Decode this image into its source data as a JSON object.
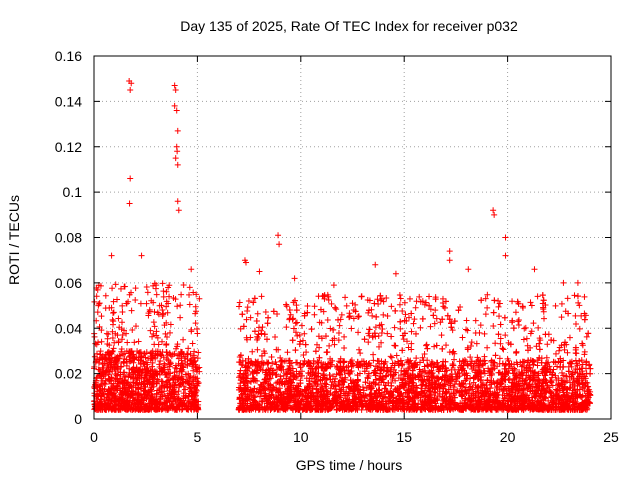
{
  "chart_data": {
    "type": "scatter",
    "title": "Day 135 of 2025, Rate Of TEC Index for receiver p032",
    "xlabel": "GPS time / hours",
    "ylabel": "ROTI / TECUs",
    "xlim": [
      0,
      25
    ],
    "ylim": [
      0,
      0.16
    ],
    "xticks": [
      0,
      5,
      10,
      15,
      20,
      25
    ],
    "yticks": [
      0,
      0.02,
      0.04,
      0.06,
      0.08,
      0.1,
      0.12,
      0.14,
      0.16
    ],
    "xtick_labels": [
      "0",
      "5",
      "10",
      "15",
      "20",
      "25"
    ],
    "ytick_labels": [
      "0",
      "0.02",
      "0.04",
      "0.06",
      "0.08",
      "0.1",
      "0.12",
      "0.14",
      "0.16"
    ],
    "grid": true,
    "marker": "+",
    "marker_color": "#ff0000",
    "data_gap_hours": [
      5.1,
      7.0
    ],
    "series": [
      {
        "name": "ROTI",
        "highlighted_points": [
          {
            "x": 1.7,
            "y": 0.149
          },
          {
            "x": 1.8,
            "y": 0.148
          },
          {
            "x": 1.75,
            "y": 0.145
          },
          {
            "x": 1.75,
            "y": 0.106
          },
          {
            "x": 1.72,
            "y": 0.095
          },
          {
            "x": 3.9,
            "y": 0.147
          },
          {
            "x": 3.95,
            "y": 0.145
          },
          {
            "x": 3.9,
            "y": 0.138
          },
          {
            "x": 4.0,
            "y": 0.136
          },
          {
            "x": 4.05,
            "y": 0.127
          },
          {
            "x": 4.0,
            "y": 0.12
          },
          {
            "x": 4.02,
            "y": 0.118
          },
          {
            "x": 3.95,
            "y": 0.115
          },
          {
            "x": 4.05,
            "y": 0.112
          },
          {
            "x": 4.05,
            "y": 0.096
          },
          {
            "x": 4.1,
            "y": 0.092
          },
          {
            "x": 8.9,
            "y": 0.081
          },
          {
            "x": 8.95,
            "y": 0.077
          },
          {
            "x": 19.3,
            "y": 0.092
          },
          {
            "x": 19.35,
            "y": 0.09
          },
          {
            "x": 19.9,
            "y": 0.08
          },
          {
            "x": 19.9,
            "y": 0.072
          },
          {
            "x": 17.2,
            "y": 0.074
          },
          {
            "x": 17.2,
            "y": 0.07
          },
          {
            "x": 7.3,
            "y": 0.07
          },
          {
            "x": 7.35,
            "y": 0.069
          },
          {
            "x": 8.0,
            "y": 0.065
          },
          {
            "x": 9.7,
            "y": 0.062
          },
          {
            "x": 11.6,
            "y": 0.059
          },
          {
            "x": 13.6,
            "y": 0.068
          },
          {
            "x": 14.6,
            "y": 0.064
          },
          {
            "x": 18.1,
            "y": 0.066
          },
          {
            "x": 21.3,
            "y": 0.066
          },
          {
            "x": 22.7,
            "y": 0.06
          },
          {
            "x": 23.4,
            "y": 0.06
          },
          {
            "x": 2.3,
            "y": 0.072
          },
          {
            "x": 0.85,
            "y": 0.072
          },
          {
            "x": 4.7,
            "y": 0.066
          },
          {
            "x": 12.5,
            "y": 0.051
          },
          {
            "x": 16.5,
            "y": 0.048
          }
        ],
        "dense_segments": [
          {
            "x_start": 0.0,
            "x_end": 5.1,
            "base_min": 0.004,
            "base_max": 0.03,
            "spike_max": 0.06
          },
          {
            "x_start": 7.0,
            "x_end": 24.0,
            "base_min": 0.004,
            "base_max": 0.026,
            "spike_max": 0.055
          }
        ]
      }
    ]
  }
}
